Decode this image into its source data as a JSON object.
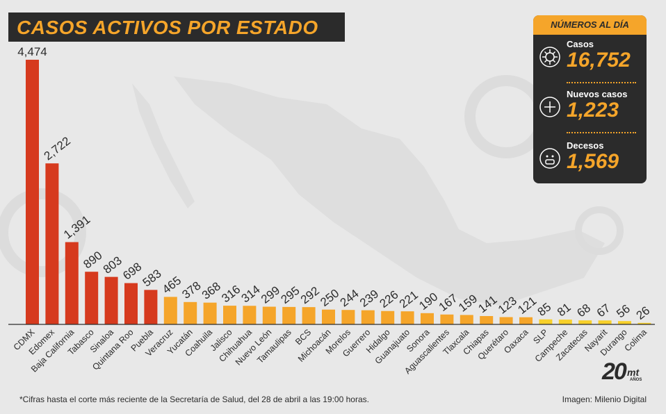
{
  "title": "CASOS ACTIVOS POR ESTADO",
  "summary": {
    "header": "NÚMEROS AL DÍA",
    "stats": [
      {
        "label": "Casos",
        "value": "16,752",
        "icon": "virus-icon"
      },
      {
        "label": "Nuevos casos",
        "value": "1,223",
        "icon": "plus-icon"
      },
      {
        "label": "Decesos",
        "value": "1,569",
        "icon": "face-mask-icon"
      }
    ]
  },
  "footnote": "*Cifras hasta el corte más reciente de la Secretaría de Salud, del 28 de abril a las 19:00 horas.",
  "credit": "Imagen: Milenio Digital",
  "logo": {
    "number": "20",
    "brand": "mt",
    "sub": "AÑOS"
  },
  "colors": {
    "high": "#d63a1e",
    "mid": "#f5a52a",
    "low": "#f7d02a",
    "dark": "#2b2b2b"
  },
  "chart_data": {
    "type": "bar",
    "categories": [
      "CDMX",
      "Edomex",
      "Baja California",
      "Tabasco",
      "Sinaloa",
      "Quintana Roo",
      "Puebla",
      "Veracruz",
      "Yucatán",
      "Coahuila",
      "Jalisco",
      "Chihuahua",
      "Nuevo León",
      "Tamaulipas",
      "BCS",
      "Michoacán",
      "Morelos",
      "Guerrero",
      "Hidalgo",
      "Guanajuato",
      "Sonora",
      "Aguascalientes",
      "Tlaxcala",
      "Chiapas",
      "Querétaro",
      "Oaxaca",
      "SLP",
      "Campeche",
      "Zacatecas",
      "Nayarit",
      "Durango",
      "Colima"
    ],
    "values": [
      4474,
      2722,
      1391,
      890,
      803,
      698,
      583,
      465,
      378,
      368,
      316,
      314,
      299,
      295,
      292,
      250,
      244,
      239,
      226,
      221,
      190,
      167,
      159,
      141,
      123,
      121,
      85,
      81,
      68,
      67,
      56,
      26
    ],
    "value_labels": [
      "4,474",
      "2,722",
      "1,391",
      "890",
      "803",
      "698",
      "583",
      "465",
      "378",
      "368",
      "316",
      "314",
      "299",
      "295",
      "292",
      "250",
      "244",
      "239",
      "226",
      "221",
      "190",
      "167",
      "159",
      "141",
      "123",
      "121",
      "85",
      "81",
      "68",
      "67",
      "56",
      "26"
    ],
    "ylim": [
      0,
      4474
    ],
    "grid": false,
    "legend": "none"
  }
}
